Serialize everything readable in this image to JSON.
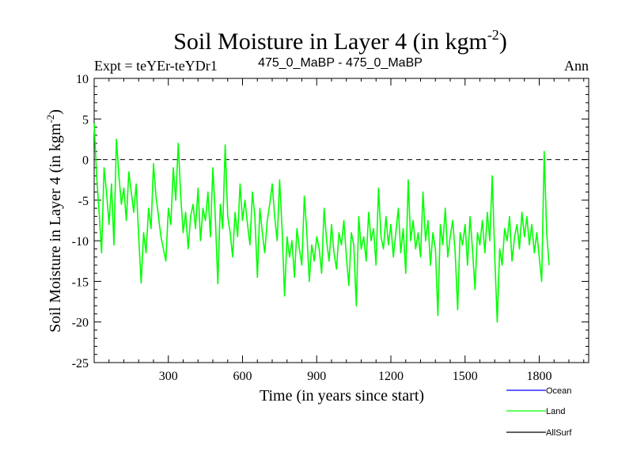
{
  "chart_data": {
    "type": "line",
    "title_main": "Soil Moisture in Layer 4 (in kgm",
    "title_sup": "-2",
    "title_close": ")",
    "subtitle_left": "Expt = teYEr-teYDr1",
    "subtitle_center": "475_0_MaBP - 475_0_MaBP",
    "subtitle_right": "Ann",
    "xlabel": "Time (in years since start)",
    "ylabel_main": "Soil Moisture in Layer 4 (in kgm",
    "ylabel_sup": "-2",
    "ylabel_close": ")",
    "xlim": [
      0,
      2000
    ],
    "ylim": [
      -25,
      10
    ],
    "xticks": [
      300,
      600,
      900,
      1200,
      1500,
      1800
    ],
    "xtick_labels": [
      "300",
      "600",
      "900",
      "1200",
      "1500",
      "1800"
    ],
    "yticks": [
      10,
      5,
      0,
      -5,
      -10,
      -15,
      -20,
      -25
    ],
    "ytick_labels": [
      "10",
      "5",
      "0",
      "-5",
      "-10",
      "-15",
      "-20",
      "-25"
    ],
    "reference_line": 0,
    "legend": [
      {
        "name": "Ocean",
        "color": "#0000ff"
      },
      {
        "name": "Land",
        "color": "#00ff00"
      },
      {
        "name": "AllSurf",
        "color": "#000000"
      }
    ],
    "series": [
      {
        "name": "Land",
        "color": "#00ff00",
        "x_start": 0,
        "x_step": 10,
        "values": [
          4.5,
          -2.0,
          -6.5,
          -11.5,
          -1.0,
          -4.0,
          -8.0,
          -3.0,
          -10.5,
          2.5,
          -2.0,
          -5.5,
          -3.5,
          -7.5,
          -1.5,
          -4.0,
          -6.5,
          -3.0,
          -9.5,
          -15.2,
          -9.0,
          -11.5,
          -6.0,
          -8.5,
          -0.5,
          -4.5,
          -7.0,
          -9.5,
          -11.0,
          -12.5,
          -6.0,
          -8.0,
          -1.0,
          -5.0,
          2.0,
          -4.5,
          -9.0,
          -6.5,
          -11.0,
          -7.0,
          -5.5,
          -8.5,
          -3.5,
          -10.0,
          -6.0,
          -7.5,
          -4.0,
          -9.5,
          -1.0,
          -7.0,
          -15.3,
          -5.5,
          -8.5,
          1.8,
          -7.0,
          -9.0,
          -12.0,
          -6.5,
          -9.5,
          -3.0,
          -7.5,
          -5.0,
          -8.0,
          -10.5,
          -4.0,
          -7.0,
          -14.5,
          -6.0,
          -9.0,
          -11.5,
          -7.5,
          -5.5,
          -3.0,
          -7.0,
          -10.0,
          -2.5,
          -8.5,
          -16.8,
          -9.5,
          -12.0,
          -10.0,
          -14.5,
          -8.5,
          -11.0,
          -13.0,
          -4.5,
          -9.0,
          -15.0,
          -10.5,
          -12.5,
          -9.5,
          -11.0,
          -14.0,
          -6.0,
          -10.0,
          -12.5,
          -8.0,
          -11.5,
          -13.5,
          -9.0,
          -10.5,
          -7.5,
          -12.0,
          -15.5,
          -9.0,
          -10.5,
          -18.0,
          -7.0,
          -11.0,
          -9.5,
          -12.5,
          -6.5,
          -10.0,
          -8.5,
          -13.0,
          -3.5,
          -9.5,
          -11.0,
          -7.0,
          -10.5,
          -8.0,
          -12.0,
          -9.0,
          -6.0,
          -11.5,
          -8.5,
          -14.0,
          -2.5,
          -10.0,
          -7.5,
          -11.0,
          -9.0,
          -12.0,
          -4.0,
          -10.0,
          -7.5,
          -13.0,
          -9.0,
          -11.0,
          -19.2,
          -8.0,
          -10.5,
          -6.0,
          -12.0,
          -9.5,
          -7.5,
          -11.5,
          -18.5,
          -9.0,
          -10.5,
          -8.0,
          -13.0,
          -7.0,
          -11.0,
          -16.0,
          -9.0,
          -10.5,
          -7.5,
          -11.5,
          -6.5,
          -10.0,
          -2.0,
          -12.0,
          -20.0,
          -11.0,
          -13.0,
          -8.5,
          -10.0,
          -7.0,
          -12.5,
          -9.5,
          -8.0,
          -11.0,
          -6.5,
          -9.5,
          -7.0,
          -10.5,
          -8.0,
          -11.5,
          -9.0,
          -12.0,
          -15.0,
          1.0,
          -9.0,
          -13.0
        ]
      }
    ]
  }
}
